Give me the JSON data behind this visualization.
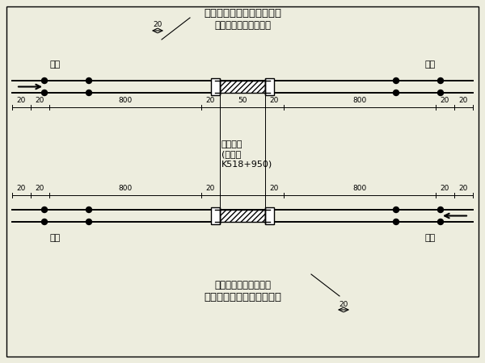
{
  "title_top": "显示停车手信号的防护人员",
  "title_bottom": "显示停车手信号的防护人员",
  "signal_top": "移动停车信号牌（灯）",
  "signal_bottom": "移动停车信号牌（灯）",
  "construction_line1": "施工地点",
  "construction_line2": "(沪昆线",
  "construction_line3": "K518+950)",
  "track_label": "哨墩",
  "bg_color": "#ededde",
  "line_color": "#000000",
  "text_color": "#000000",
  "border_color": "#000000",
  "fig_w": 6.0,
  "fig_h": 4.5,
  "dpi": 100
}
